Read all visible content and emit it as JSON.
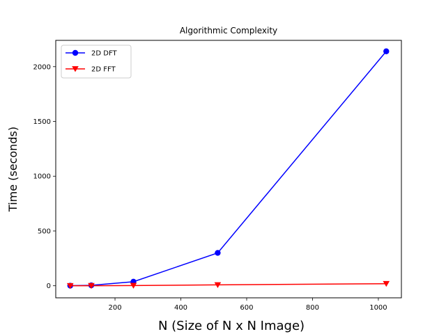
{
  "chart_data": {
    "type": "line",
    "title": "Algorithmic Complexity",
    "xlabel": "N (Size of N x N Image)",
    "ylabel": "Time (seconds)",
    "xlim": [
      20,
      1070
    ],
    "ylim": [
      -110,
      2240
    ],
    "x_ticks": [
      200,
      400,
      600,
      800,
      1000
    ],
    "y_ticks": [
      0,
      500,
      1000,
      1500,
      2000
    ],
    "grid": false,
    "legend_position": "top-left",
    "series": [
      {
        "name": "2D DFT",
        "color": "#0000ff",
        "marker": "circle",
        "x": [
          64,
          128,
          256,
          512,
          1024
        ],
        "y": [
          1,
          4,
          37,
          300,
          2140
        ]
      },
      {
        "name": "2D FFT",
        "color": "#ff0000",
        "marker": "triangle-down",
        "x": [
          64,
          128,
          256,
          512,
          1024
        ],
        "y": [
          0.1,
          0.3,
          2,
          8,
          19
        ]
      }
    ]
  }
}
